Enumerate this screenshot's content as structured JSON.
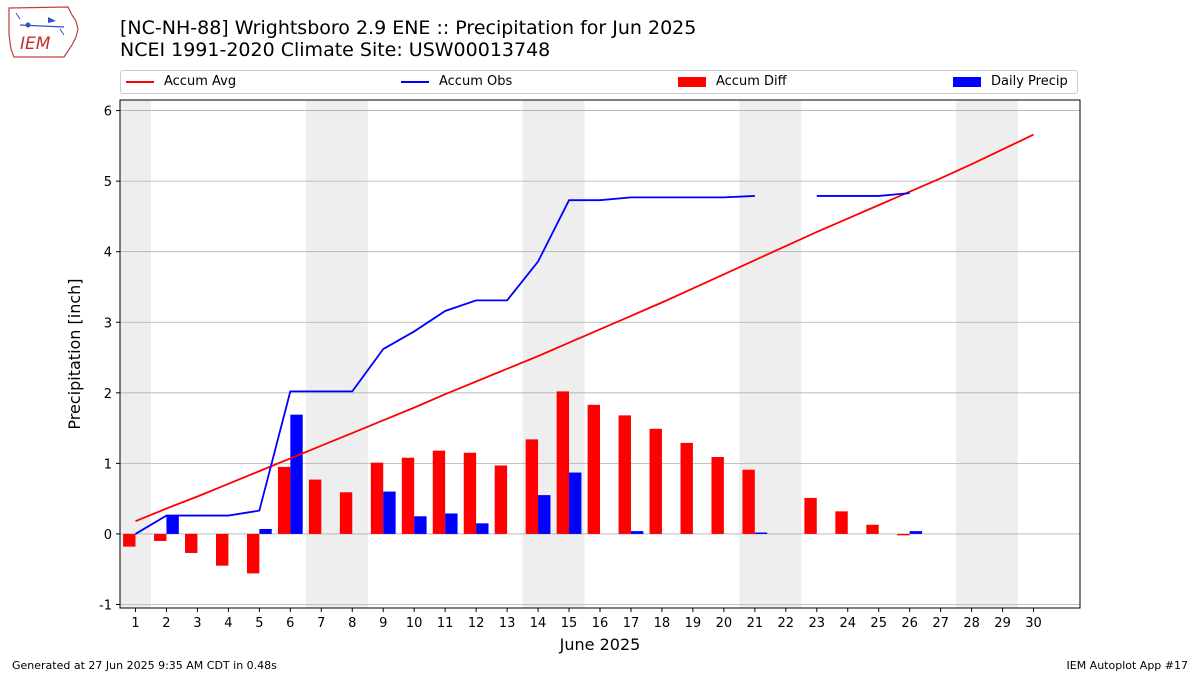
{
  "title_line1": "[NC-NH-88] Wrightsboro 2.9 ENE :: Precipitation for Jun 2025",
  "title_line2": "NCEI 1991-2020 Climate Site: USW00013748",
  "footer_left": "Generated at 27 Jun 2025 9:35 AM CDT in 0.48s",
  "footer_right": "IEM Autoplot App #17",
  "logo_text": "IEM",
  "colors": {
    "avg": "#ff0000",
    "obs": "#0000ff",
    "diff": "#ff0000",
    "daily": "#0000ff",
    "weekend_band": "#eeeeee",
    "grid": "#b0b0b0"
  },
  "chart_data": {
    "type": "bar",
    "title": "[NC-NH-88] Wrightsboro 2.9 ENE :: Precipitation for Jun 2025",
    "subtitle": "NCEI 1991-2020 Climate Site: USW00013748",
    "xlabel": "June 2025",
    "ylabel": "Precipitation [inch]",
    "xlim": [
      0.5,
      31.5
    ],
    "ylim": [
      -1.05,
      6.15
    ],
    "yticks": [
      -1,
      0,
      1,
      2,
      3,
      4,
      5,
      6
    ],
    "categories": [
      "1",
      "2",
      "3",
      "4",
      "5",
      "6",
      "7",
      "8",
      "9",
      "10",
      "11",
      "12",
      "13",
      "14",
      "15",
      "16",
      "17",
      "18",
      "19",
      "20",
      "21",
      "22",
      "23",
      "24",
      "25",
      "26",
      "27",
      "28",
      "29",
      "30"
    ],
    "weekend_bands": [
      [
        0.5,
        1.5
      ],
      [
        6.5,
        8.5
      ],
      [
        13.5,
        15.5
      ],
      [
        20.5,
        22.5
      ],
      [
        27.5,
        29.5
      ]
    ],
    "grid": "horizontal",
    "legend": {
      "placement": "top, above plot",
      "entries": [
        "Accum Avg",
        "Accum Obs",
        "Accum Diff",
        "Daily Precip"
      ]
    },
    "series": [
      {
        "name": "Accum Avg",
        "kind": "line",
        "values": [
          0.18,
          0.36,
          0.53,
          0.71,
          0.89,
          1.07,
          1.25,
          1.43,
          1.61,
          1.79,
          1.98,
          2.16,
          2.34,
          2.52,
          2.71,
          2.9,
          3.09,
          3.28,
          3.48,
          3.68,
          3.88,
          4.08,
          4.28,
          4.47,
          4.66,
          4.85,
          5.04,
          5.24,
          5.45,
          5.66
        ]
      },
      {
        "name": "Accum Obs",
        "kind": "line",
        "values": [
          0.0,
          0.26,
          0.26,
          0.26,
          0.33,
          2.02,
          2.02,
          2.02,
          2.62,
          2.87,
          3.16,
          3.31,
          3.31,
          3.86,
          4.73,
          4.73,
          4.77,
          4.77,
          4.77,
          4.77,
          4.79,
          null,
          4.79,
          4.79,
          4.79,
          4.83,
          null,
          null,
          null,
          null
        ]
      },
      {
        "name": "Accum Diff",
        "kind": "bar",
        "values": [
          -0.18,
          -0.1,
          -0.27,
          -0.45,
          -0.56,
          0.95,
          0.77,
          0.59,
          1.01,
          1.08,
          1.18,
          1.15,
          0.97,
          1.34,
          2.02,
          1.83,
          1.68,
          1.49,
          1.29,
          1.09,
          0.91,
          null,
          0.51,
          0.32,
          0.13,
          -0.02,
          null,
          null,
          null,
          null
        ]
      },
      {
        "name": "Daily Precip",
        "kind": "bar",
        "values": [
          0.0,
          0.26,
          0.0,
          0.0,
          0.07,
          1.69,
          0.0,
          0.0,
          0.6,
          0.25,
          0.29,
          0.15,
          0.0,
          0.55,
          0.87,
          0.0,
          0.04,
          0.0,
          0.0,
          0.0,
          0.02,
          null,
          0.0,
          0.0,
          0.0,
          0.04,
          null,
          null,
          null,
          null
        ]
      }
    ]
  }
}
